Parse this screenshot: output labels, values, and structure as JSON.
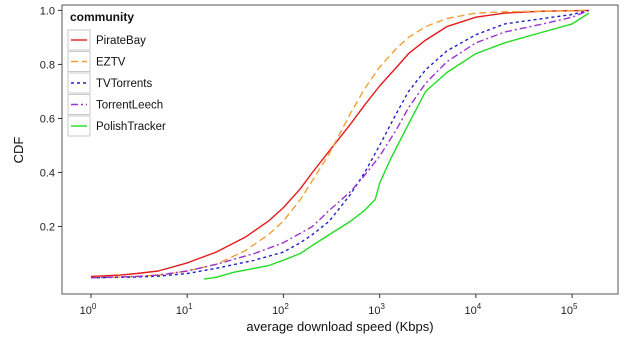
{
  "chart_data": {
    "type": "line",
    "xlabel": "average download speed (Kbps)",
    "ylabel": "CDF",
    "xscale": "log",
    "xlim": [
      0.5,
      300000
    ],
    "ylim": [
      -0.05,
      1.02
    ],
    "grid": false,
    "legend": {
      "title": "community",
      "placement": "top-left"
    },
    "x_ticks": [
      {
        "value": 1,
        "base": "10",
        "exp": "0"
      },
      {
        "value": 10,
        "base": "10",
        "exp": "1"
      },
      {
        "value": 100,
        "base": "10",
        "exp": "2"
      },
      {
        "value": 1000,
        "base": "10",
        "exp": "3"
      },
      {
        "value": 10000,
        "base": "10",
        "exp": "4"
      },
      {
        "value": 100000,
        "base": "10",
        "exp": "5"
      }
    ],
    "y_ticks": [
      {
        "value": 0.2,
        "label": "0.2"
      },
      {
        "value": 0.4,
        "label": "0.4"
      },
      {
        "value": 0.6,
        "label": "0.6"
      },
      {
        "value": 0.8,
        "label": "0.8"
      },
      {
        "value": 1.0,
        "label": "1.0"
      }
    ],
    "series": [
      {
        "name": "PirateBay",
        "color": "#e41a1c",
        "dash": "solid",
        "points": [
          [
            1,
            0.015
          ],
          [
            2,
            0.02
          ],
          [
            3,
            0.026
          ],
          [
            5,
            0.035
          ],
          [
            10,
            0.065
          ],
          [
            20,
            0.105
          ],
          [
            40,
            0.16
          ],
          [
            70,
            0.22
          ],
          [
            100,
            0.27
          ],
          [
            150,
            0.34
          ],
          [
            200,
            0.4
          ],
          [
            300,
            0.48
          ],
          [
            500,
            0.58
          ],
          [
            700,
            0.65
          ],
          [
            1000,
            0.72
          ],
          [
            1500,
            0.79
          ],
          [
            2000,
            0.84
          ],
          [
            3000,
            0.89
          ],
          [
            5000,
            0.94
          ],
          [
            10000,
            0.975
          ],
          [
            20000,
            0.99
          ],
          [
            50000,
            0.997
          ],
          [
            150000,
            1.0
          ]
        ]
      },
      {
        "name": "EZTV",
        "color": "#f0a030",
        "dash": "7,4",
        "points": [
          [
            1,
            0.01
          ],
          [
            3,
            0.015
          ],
          [
            5,
            0.02
          ],
          [
            10,
            0.035
          ],
          [
            20,
            0.06
          ],
          [
            40,
            0.11
          ],
          [
            70,
            0.17
          ],
          [
            100,
            0.22
          ],
          [
            150,
            0.3
          ],
          [
            200,
            0.37
          ],
          [
            300,
            0.47
          ],
          [
            500,
            0.62
          ],
          [
            700,
            0.71
          ],
          [
            1000,
            0.79
          ],
          [
            1500,
            0.86
          ],
          [
            2000,
            0.9
          ],
          [
            3000,
            0.94
          ],
          [
            5000,
            0.97
          ],
          [
            10000,
            0.99
          ],
          [
            20000,
            0.995
          ],
          [
            150000,
            1.0
          ]
        ]
      },
      {
        "name": "TVTorrents",
        "color": "#1f1fcc",
        "dash": "3,3",
        "points": [
          [
            1,
            0.01
          ],
          [
            3,
            0.013
          ],
          [
            5,
            0.016
          ],
          [
            10,
            0.026
          ],
          [
            20,
            0.045
          ],
          [
            50,
            0.075
          ],
          [
            100,
            0.105
          ],
          [
            150,
            0.14
          ],
          [
            200,
            0.17
          ],
          [
            300,
            0.22
          ],
          [
            500,
            0.32
          ],
          [
            700,
            0.4
          ],
          [
            1000,
            0.5
          ],
          [
            1500,
            0.62
          ],
          [
            2000,
            0.7
          ],
          [
            3000,
            0.78
          ],
          [
            5000,
            0.85
          ],
          [
            10000,
            0.91
          ],
          [
            20000,
            0.95
          ],
          [
            50000,
            0.97
          ],
          [
            100000,
            0.985
          ],
          [
            150000,
            1.0
          ]
        ]
      },
      {
        "name": "TorrentLeech",
        "color": "#9933cc",
        "dash": "7,3,2,3",
        "points": [
          [
            1,
            0.01
          ],
          [
            3,
            0.015
          ],
          [
            5,
            0.02
          ],
          [
            10,
            0.035
          ],
          [
            20,
            0.06
          ],
          [
            50,
            0.1
          ],
          [
            100,
            0.14
          ],
          [
            200,
            0.2
          ],
          [
            300,
            0.26
          ],
          [
            500,
            0.33
          ],
          [
            700,
            0.39
          ],
          [
            1000,
            0.46
          ],
          [
            1500,
            0.56
          ],
          [
            2000,
            0.64
          ],
          [
            3000,
            0.73
          ],
          [
            5000,
            0.81
          ],
          [
            10000,
            0.88
          ],
          [
            20000,
            0.92
          ],
          [
            50000,
            0.95
          ],
          [
            100000,
            0.975
          ],
          [
            150000,
            1.0
          ]
        ]
      },
      {
        "name": "PolishTracker",
        "color": "#22dd22",
        "dash": "solid",
        "points": [
          [
            15,
            0.005
          ],
          [
            20,
            0.012
          ],
          [
            30,
            0.03
          ],
          [
            50,
            0.045
          ],
          [
            70,
            0.055
          ],
          [
            100,
            0.075
          ],
          [
            150,
            0.1
          ],
          [
            200,
            0.13
          ],
          [
            300,
            0.17
          ],
          [
            500,
            0.22
          ],
          [
            700,
            0.26
          ],
          [
            900,
            0.3
          ],
          [
            1000,
            0.36
          ],
          [
            1300,
            0.45
          ],
          [
            2000,
            0.58
          ],
          [
            3000,
            0.7
          ],
          [
            5000,
            0.77
          ],
          [
            10000,
            0.84
          ],
          [
            20000,
            0.88
          ],
          [
            50000,
            0.92
          ],
          [
            100000,
            0.95
          ],
          [
            150000,
            0.99
          ]
        ]
      }
    ]
  }
}
